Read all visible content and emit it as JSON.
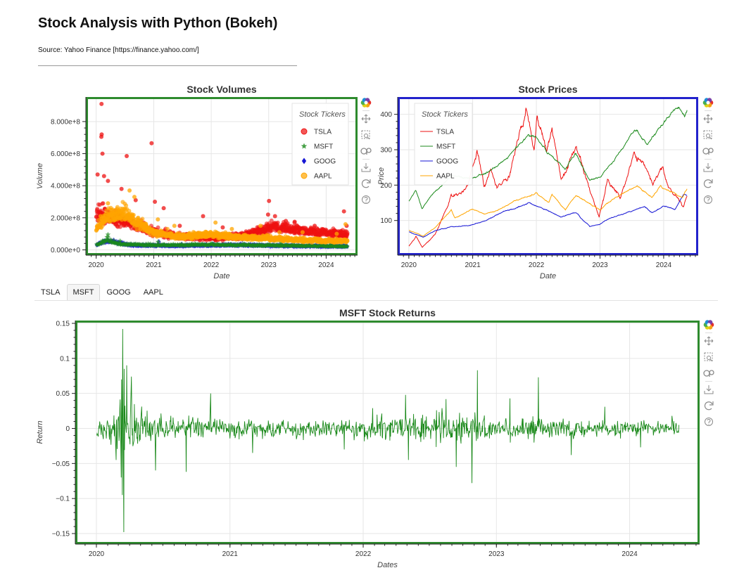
{
  "page": {
    "title": "Stock Analysis with Python (Bokeh)",
    "source": "Source: Yahoo Finance [https://finance.yahoo.com/]"
  },
  "toolbar_icons": [
    "bokeh-logo-icon",
    "pan-icon",
    "box-zoom-icon",
    "wheel-zoom-icon",
    "save-icon",
    "reset-icon",
    "help-icon"
  ],
  "tabs": [
    {
      "label": "TSLA",
      "active": false
    },
    {
      "label": "MSFT",
      "active": true
    },
    {
      "label": "GOOG",
      "active": false
    },
    {
      "label": "AAPL",
      "active": false
    }
  ],
  "colors": {
    "TSLA": "#ee1111",
    "MSFT": "#1c8a1c",
    "GOOG": "#1515d4",
    "AAPL": "#ffa500",
    "volumes_border": "#2e8b2e",
    "prices_border": "#2222cc",
    "returns_border": "#2e8b2e"
  },
  "chart_data": [
    {
      "type": "scatter",
      "title": "Stock Volumes",
      "xlabel": "Date",
      "ylabel": "Volume",
      "x_ticks": [
        "2020",
        "2021",
        "2022",
        "2023",
        "2024"
      ],
      "y_ticks": [
        0,
        200000000,
        400000000,
        600000000,
        800000000
      ],
      "y_tick_labels": [
        "0.000e+0",
        "2.000e+8",
        "4.000e+8",
        "6.000e+8",
        "8.000e+8"
      ],
      "xlim": [
        "2019-11-10",
        "2024-07-05"
      ],
      "ylim": [
        -20000000,
        940000000
      ],
      "grid": true,
      "legend_title": "Stock Tickers",
      "legend_position": "top-right",
      "series": [
        {
          "name": "TSLA",
          "marker": "circle",
          "points": [
            [
              "2020-02-04",
              910000000
            ],
            [
              "2020-02-05",
              720000000
            ],
            [
              "2020-02-03",
              705000000
            ],
            [
              "2020-02-10",
              600000000
            ],
            [
              "2020-07-13",
              585000000
            ],
            [
              "2020-12-18",
              665000000
            ],
            [
              "2020-01-10",
              470000000
            ],
            [
              "2020-02-20",
              460000000
            ],
            [
              "2020-03-16",
              430000000
            ],
            [
              "2020-06-10",
              380000000
            ],
            [
              "2020-09-08",
              310000000
            ],
            [
              "2021-01-08",
              300000000
            ],
            [
              "2021-03-05",
              260000000
            ],
            [
              "2021-06-15",
              150000000
            ],
            [
              "2021-11-10",
              210000000
            ],
            [
              "2022-03-15",
              140000000
            ],
            [
              "2022-10-25",
              130000000
            ],
            [
              "2022-12-28",
              220000000
            ],
            [
              "2023-01-03",
              305000000
            ],
            [
              "2023-02-10",
              210000000
            ],
            [
              "2023-04-20",
              180000000
            ],
            [
              "2023-06-15",
              175000000
            ],
            [
              "2023-10-20",
              150000000
            ],
            [
              "2024-04-23",
              240000000
            ],
            [
              "2024-05-10",
              150000000
            ]
          ]
        },
        {
          "name": "MSFT",
          "marker": "star",
          "points": [
            [
              "2020-03-16",
              95000000
            ],
            [
              "2020-03-10",
              80000000
            ],
            [
              "2020-06-01",
              55000000
            ],
            [
              "2021-01-28",
              50000000
            ],
            [
              "2022-01-27",
              60000000
            ],
            [
              "2023-03-20",
              45000000
            ],
            [
              "2024-01-31",
              40000000
            ]
          ]
        },
        {
          "name": "GOOG",
          "marker": "diamond",
          "points": [
            [
              "2020-03-16",
              60000000
            ],
            [
              "2020-06-01",
              40000000
            ],
            [
              "2021-02-03",
              50000000
            ],
            [
              "2022-07-18",
              65000000
            ],
            [
              "2023-02-08",
              60000000
            ],
            [
              "2024-01-31",
              50000000
            ]
          ]
        },
        {
          "name": "AAPL",
          "marker": "circle",
          "points": [
            [
              "2020-01-29",
              210000000
            ],
            [
              "2020-03-16",
              290000000
            ],
            [
              "2020-07-31",
              370000000
            ],
            [
              "2020-08-31",
              330000000
            ],
            [
              "2021-01-27",
              190000000
            ],
            [
              "2021-05-12",
              150000000
            ],
            [
              "2022-01-28",
              170000000
            ],
            [
              "2022-05-12",
              130000000
            ],
            [
              "2022-11-10",
              150000000
            ],
            [
              "2023-03-10",
              110000000
            ],
            [
              "2023-08-04",
              110000000
            ],
            [
              "2024-03-08",
              100000000
            ],
            [
              "2024-05-03",
              160000000
            ]
          ]
        }
      ]
    },
    {
      "type": "line",
      "title": "Stock Prices",
      "xlabel": "Date",
      "ylabel": "Price",
      "x_ticks": [
        "2020",
        "2021",
        "2022",
        "2023",
        "2024"
      ],
      "y_ticks": [
        100,
        200,
        300,
        400
      ],
      "xlim": [
        "2019-11-10",
        "2024-07-05"
      ],
      "ylim": [
        8,
        443
      ],
      "grid": true,
      "legend_title": "Stock Tickers",
      "legend_position": "top-left",
      "series": [
        {
          "name": "TSLA",
          "points": [
            [
              "2020-01-02",
              28
            ],
            [
              "2020-02-10",
              55
            ],
            [
              "2020-03-18",
              24
            ],
            [
              "2020-06-01",
              60
            ],
            [
              "2020-08-31",
              166
            ],
            [
              "2020-12-01",
              190
            ],
            [
              "2021-01-26",
              294
            ],
            [
              "2021-03-08",
              200
            ],
            [
              "2021-04-15",
              245
            ],
            [
              "2021-05-20",
              190
            ],
            [
              "2021-08-01",
              240
            ],
            [
              "2021-11-04",
              409
            ],
            [
              "2021-12-20",
              300
            ],
            [
              "2022-01-03",
              399
            ],
            [
              "2022-03-01",
              290
            ],
            [
              "2022-04-01",
              360
            ],
            [
              "2022-05-24",
              210
            ],
            [
              "2022-08-16",
              300
            ],
            [
              "2022-10-01",
              240
            ],
            [
              "2022-12-27",
              110
            ],
            [
              "2023-02-15",
              215
            ],
            [
              "2023-04-30",
              165
            ],
            [
              "2023-07-18",
              293
            ],
            [
              "2023-09-30",
              250
            ],
            [
              "2023-10-31",
              200
            ],
            [
              "2023-12-27",
              261
            ],
            [
              "2024-02-01",
              188
            ],
            [
              "2024-04-22",
              142
            ],
            [
              "2024-05-15",
              175
            ]
          ]
        },
        {
          "name": "MSFT",
          "points": [
            [
              "2020-01-02",
              155
            ],
            [
              "2020-02-10",
              185
            ],
            [
              "2020-03-16",
              135
            ],
            [
              "2020-06-01",
              183
            ],
            [
              "2020-09-01",
              225
            ],
            [
              "2020-12-31",
              222
            ],
            [
              "2021-03-31",
              236
            ],
            [
              "2021-06-30",
              270
            ],
            [
              "2021-09-01",
              302
            ],
            [
              "2021-11-19",
              343
            ],
            [
              "2021-12-31",
              336
            ],
            [
              "2022-03-01",
              295
            ],
            [
              "2022-06-16",
              245
            ],
            [
              "2022-08-15",
              290
            ],
            [
              "2022-11-03",
              214
            ],
            [
              "2023-01-05",
              222
            ],
            [
              "2023-04-26",
              295
            ],
            [
              "2023-07-18",
              360
            ],
            [
              "2023-09-29",
              315
            ],
            [
              "2023-12-29",
              375
            ],
            [
              "2024-03-28",
              420
            ],
            [
              "2024-04-30",
              390
            ],
            [
              "2024-05-15",
              415
            ]
          ]
        },
        {
          "name": "GOOG",
          "points": [
            [
              "2020-01-02",
              68
            ],
            [
              "2020-03-23",
              53
            ],
            [
              "2020-06-01",
              72
            ],
            [
              "2020-09-01",
              82
            ],
            [
              "2020-12-31",
              88
            ],
            [
              "2021-03-31",
              103
            ],
            [
              "2021-06-30",
              125
            ],
            [
              "2021-11-19",
              149
            ],
            [
              "2022-03-08",
              128
            ],
            [
              "2022-05-20",
              110
            ],
            [
              "2022-08-16",
              122
            ],
            [
              "2022-11-03",
              84
            ],
            [
              "2022-12-31",
              89
            ],
            [
              "2023-02-01",
              101
            ],
            [
              "2023-06-15",
              125
            ],
            [
              "2023-09-14",
              138
            ],
            [
              "2023-10-26",
              122
            ],
            [
              "2023-12-29",
              140
            ],
            [
              "2024-03-05",
              133
            ],
            [
              "2024-04-26",
              173
            ],
            [
              "2024-05-15",
              171
            ]
          ]
        },
        {
          "name": "AAPL",
          "points": [
            [
              "2020-01-02",
              73
            ],
            [
              "2020-03-23",
              56
            ],
            [
              "2020-06-01",
              80
            ],
            [
              "2020-08-31",
              129
            ],
            [
              "2020-09-21",
              107
            ],
            [
              "2020-12-31",
              132
            ],
            [
              "2021-03-08",
              116
            ],
            [
              "2021-06-30",
              137
            ],
            [
              "2021-09-07",
              156
            ],
            [
              "2021-12-31",
              177
            ],
            [
              "2022-03-14",
              150
            ],
            [
              "2022-04-01",
              174
            ],
            [
              "2022-06-16",
              130
            ],
            [
              "2022-08-16",
              172
            ],
            [
              "2022-12-31",
              129
            ],
            [
              "2023-03-31",
              165
            ],
            [
              "2023-07-31",
              196
            ],
            [
              "2023-10-26",
              166
            ],
            [
              "2023-12-14",
              198
            ],
            [
              "2024-02-01",
              185
            ],
            [
              "2024-04-19",
              165
            ],
            [
              "2024-05-15",
              189
            ]
          ]
        }
      ]
    },
    {
      "type": "line",
      "title": "MSFT Stock Returns",
      "xlabel": "Dates",
      "ylabel": "Return",
      "x_ticks": [
        "2020",
        "2021",
        "2022",
        "2023",
        "2024"
      ],
      "y_ticks": [
        -0.15,
        -0.1,
        -0.05,
        0,
        0.05,
        0.1,
        0.15
      ],
      "y_tick_labels": [
        "−0.15",
        "−0.1",
        "−0.05",
        "0",
        "0.05",
        "0.1",
        "0.15"
      ],
      "xlim": [
        "2019-11-10",
        "2024-07-05"
      ],
      "ylim": [
        -0.162,
        0.151
      ],
      "grid": true,
      "series": [
        {
          "name": "MSFT",
          "points": [
            [
              "2020-01-02",
              -0.01
            ],
            [
              "2020-02-24",
              -0.045
            ],
            [
              "2020-03-09",
              -0.07
            ],
            [
              "2020-03-10",
              0.07
            ],
            [
              "2020-03-12",
              -0.095
            ],
            [
              "2020-03-13",
              0.142
            ],
            [
              "2020-03-16",
              -0.148
            ],
            [
              "2020-03-17",
              0.085
            ],
            [
              "2020-03-24",
              0.09
            ],
            [
              "2020-04-06",
              0.074
            ],
            [
              "2020-06-11",
              -0.06
            ],
            [
              "2020-09-03",
              -0.062
            ],
            [
              "2020-11-09",
              0.05
            ],
            [
              "2021-03-04",
              -0.035
            ],
            [
              "2021-11-10",
              -0.03
            ],
            [
              "2022-01-27",
              0.029
            ],
            [
              "2022-04-27",
              0.048
            ],
            [
              "2022-05-05",
              -0.045
            ],
            [
              "2022-08-16",
              0.042
            ],
            [
              "2022-09-13",
              -0.055
            ],
            [
              "2022-10-26",
              -0.078
            ],
            [
              "2022-11-10",
              0.083
            ],
            [
              "2023-02-07",
              0.043
            ],
            [
              "2023-04-26",
              0.073
            ],
            [
              "2023-07-25",
              -0.038
            ],
            [
              "2023-10-25",
              0.031
            ],
            [
              "2024-01-31",
              -0.027
            ],
            [
              "2024-04-26",
              0.018
            ],
            [
              "2024-05-15",
              0.005
            ]
          ]
        }
      ]
    }
  ]
}
